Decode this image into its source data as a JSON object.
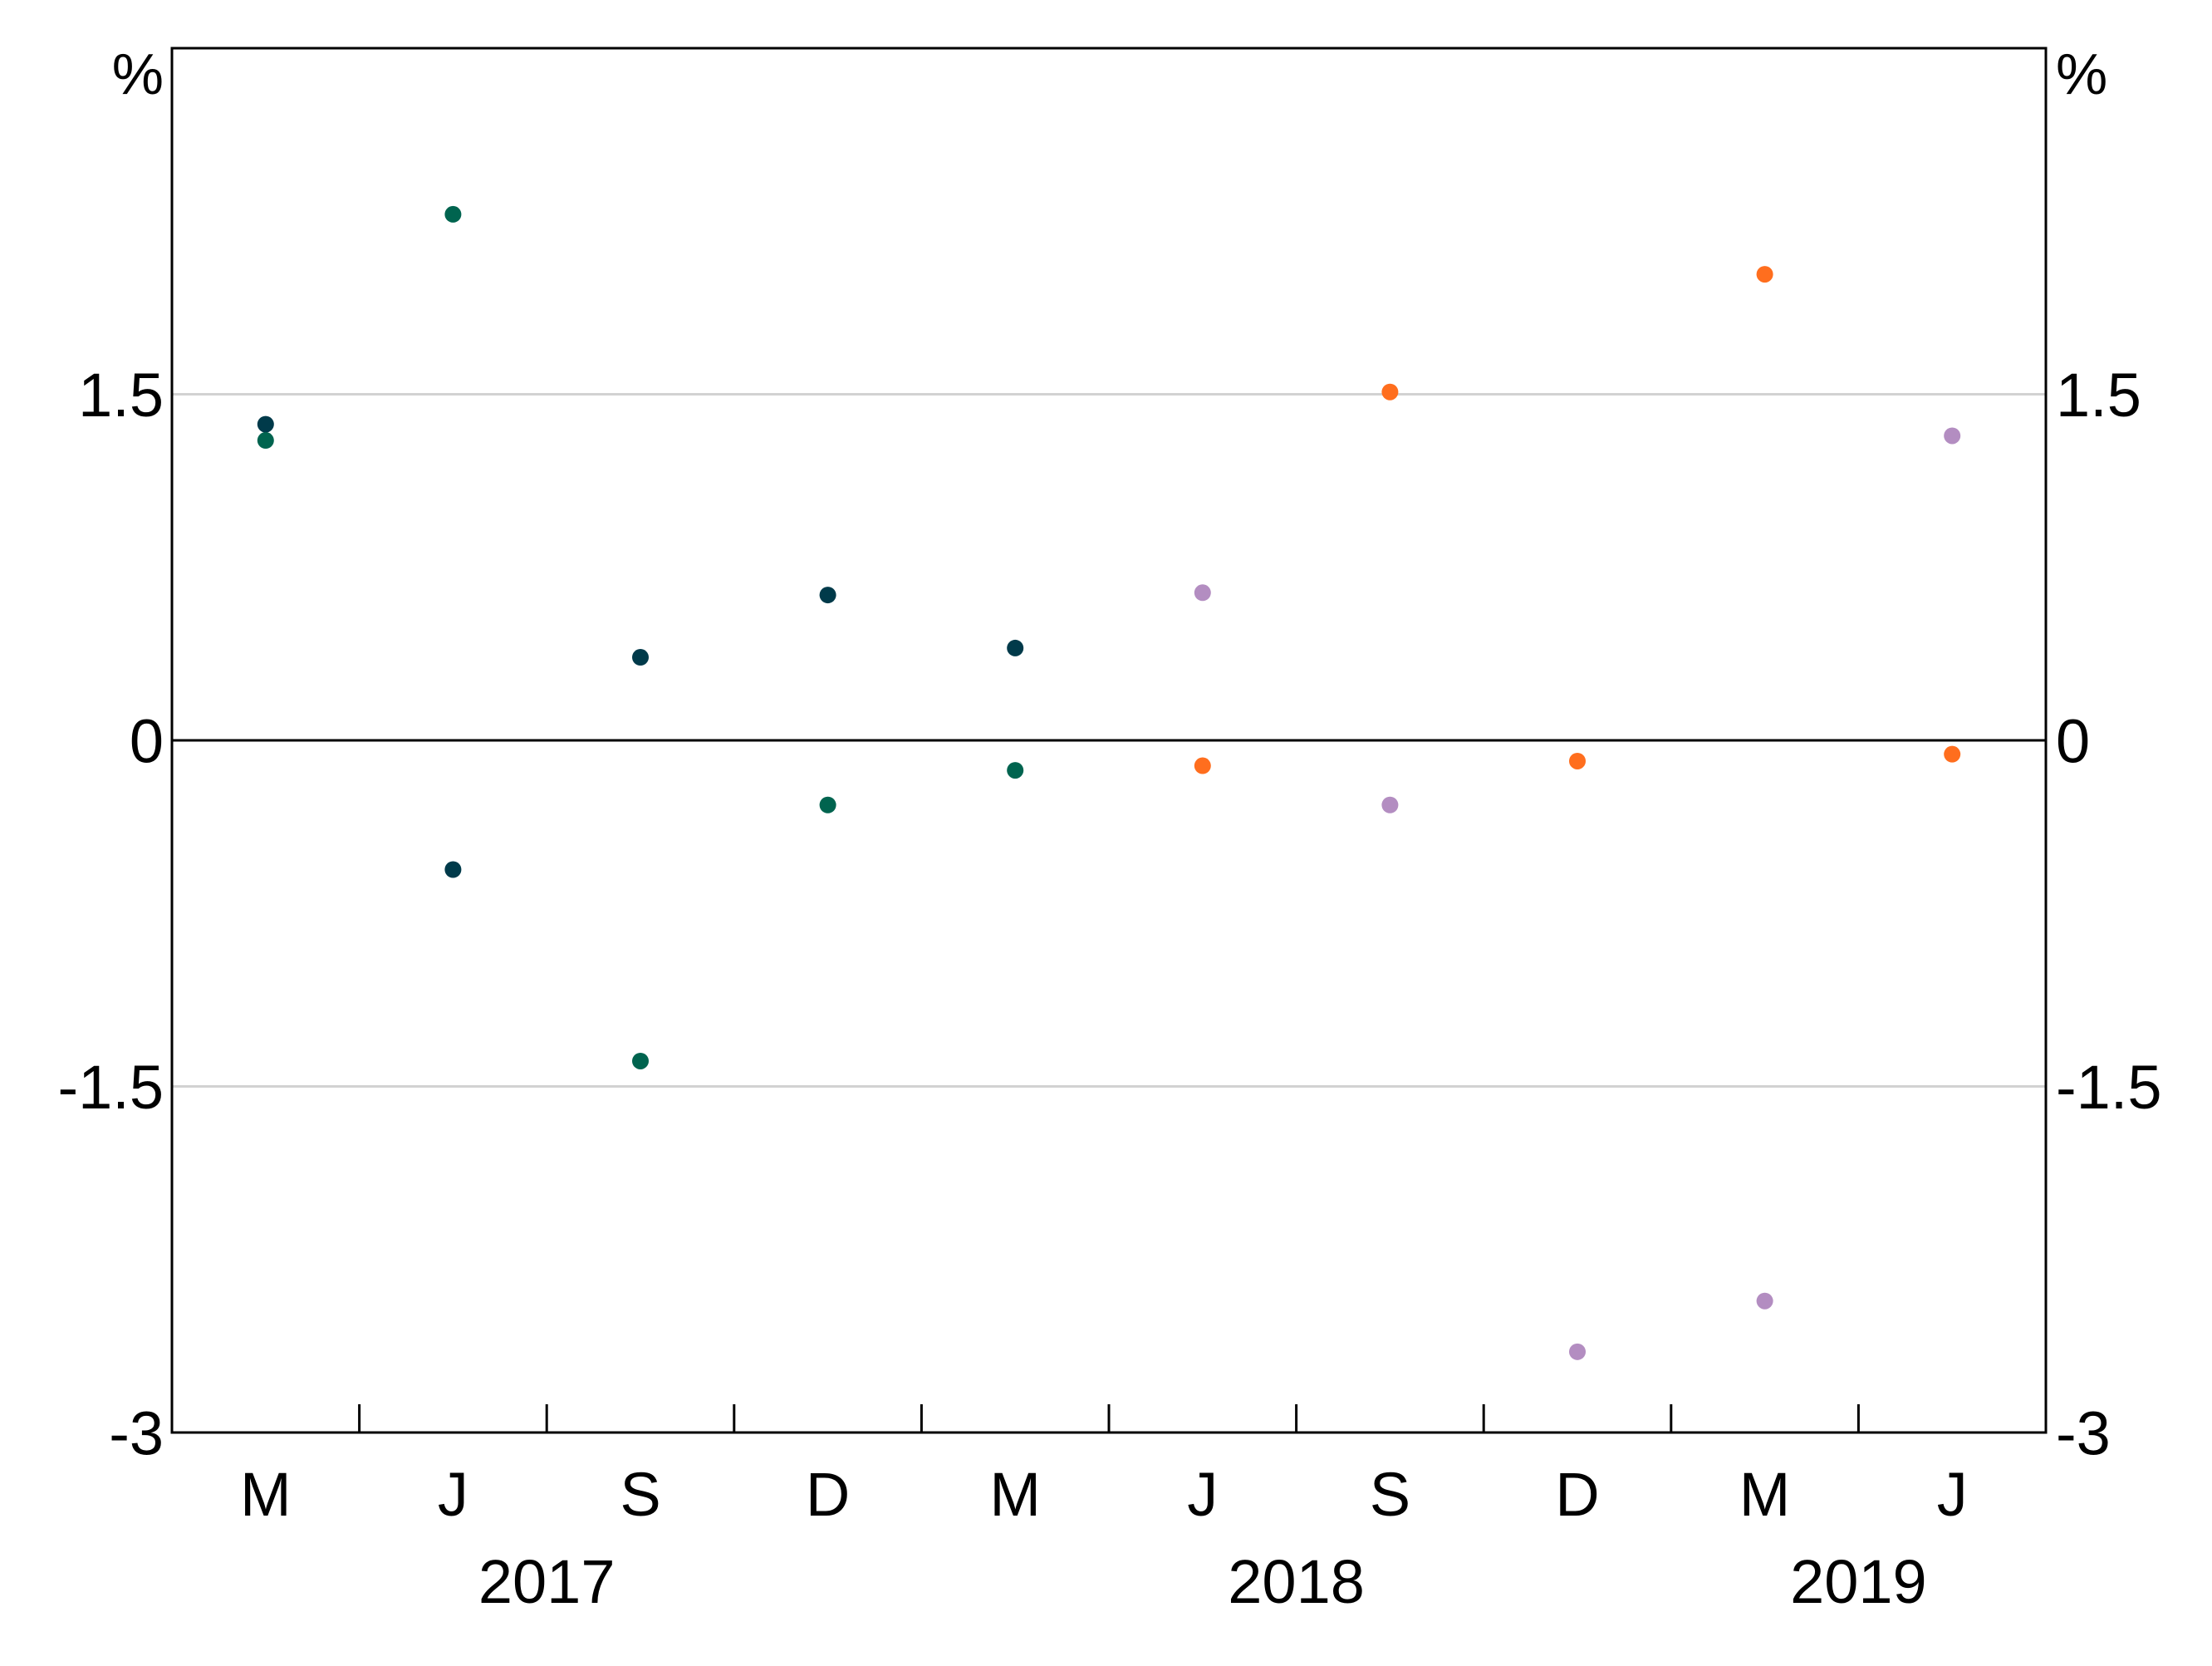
{
  "chart_data": {
    "type": "scatter",
    "title": "",
    "xlabel": "",
    "ylabel": "",
    "y_unit_left": "%",
    "y_unit_right": "%",
    "ylim": [
      -3,
      3
    ],
    "yticks": [
      1.5,
      0,
      -1.5,
      -3
    ],
    "ytick_labels": [
      "1.5",
      "0",
      "-1.5",
      "-3"
    ],
    "gridlines_at": [
      1.5,
      -1.5
    ],
    "zero_line": true,
    "grid": true,
    "legend": "none",
    "categories": [
      "M",
      "J",
      "S",
      "D",
      "M",
      "J",
      "S",
      "D",
      "M",
      "J"
    ],
    "years": [
      {
        "label": "2017",
        "start_index": 0,
        "end_index": 3
      },
      {
        "label": "2018",
        "start_index": 4,
        "end_index": 7
      },
      {
        "label": "2019",
        "start_index": 8,
        "end_index": 9
      }
    ],
    "series": [
      {
        "color": "#003a4a",
        "points": [
          {
            "x_index": 0,
            "y": 1.37
          },
          {
            "x_index": 1,
            "y": -0.56
          },
          {
            "x_index": 2,
            "y": 0.36
          },
          {
            "x_index": 3,
            "y": 0.63
          },
          {
            "x_index": 4,
            "y": 0.4
          }
        ]
      },
      {
        "color": "#00644f",
        "points": [
          {
            "x_index": 0,
            "y": 1.3
          },
          {
            "x_index": 1,
            "y": 2.28
          },
          {
            "x_index": 2,
            "y": -1.39
          },
          {
            "x_index": 3,
            "y": -0.28
          },
          {
            "x_index": 4,
            "y": -0.13
          }
        ]
      },
      {
        "color": "#ff6e1e",
        "points": [
          {
            "x_index": 5,
            "y": -0.11
          },
          {
            "x_index": 6,
            "y": 1.51
          },
          {
            "x_index": 7,
            "y": -0.09
          },
          {
            "x_index": 8,
            "y": 2.02
          },
          {
            "x_index": 9,
            "y": -0.06
          }
        ]
      },
      {
        "color": "#b38dc1",
        "points": [
          {
            "x_index": 5,
            "y": 0.64
          },
          {
            "x_index": 6,
            "y": -0.28
          },
          {
            "x_index": 7,
            "y": -2.65
          },
          {
            "x_index": 8,
            "y": -2.43
          },
          {
            "x_index": 9,
            "y": 1.32
          }
        ]
      }
    ]
  }
}
